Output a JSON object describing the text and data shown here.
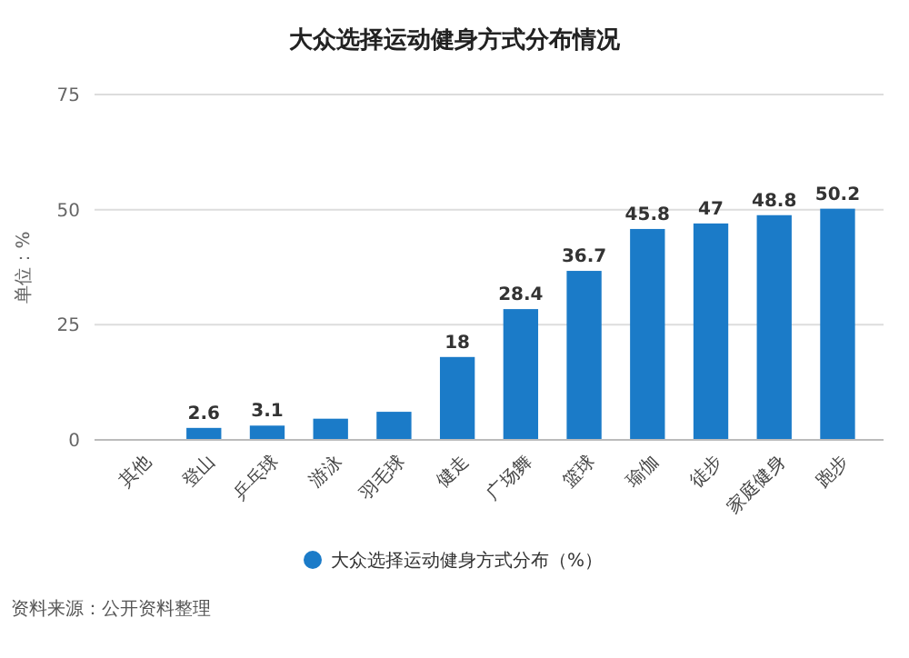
{
  "chart_data": {
    "type": "bar",
    "title": "大众选择运动健身方式分布情况",
    "ylabel": "单位：%",
    "categories": [
      "其他",
      "登山",
      "乒乓球",
      "游泳",
      "羽毛球",
      "健走",
      "广场舞",
      "篮球",
      "瑜伽",
      "徒步",
      "家庭健身",
      "跑步"
    ],
    "series": [
      {
        "name": "大众选择运动健身方式分布（%）",
        "color": "#1b7bc8",
        "values": [
          null,
          2.6,
          3.1,
          4.6,
          6.1,
          18,
          28.4,
          36.7,
          45.8,
          47,
          48.8,
          50.2
        ],
        "value_labels": [
          null,
          "2.6",
          "3.1",
          null,
          null,
          "18",
          "28.4",
          "36.7",
          "45.8",
          "47",
          "48.8",
          "50.2"
        ]
      }
    ],
    "ylim": [
      0,
      75
    ],
    "yticks": [
      0,
      25,
      50,
      75
    ],
    "grid": "y",
    "legend": "bottom",
    "annotations": [
      "资料来源：公开资料整理"
    ]
  }
}
